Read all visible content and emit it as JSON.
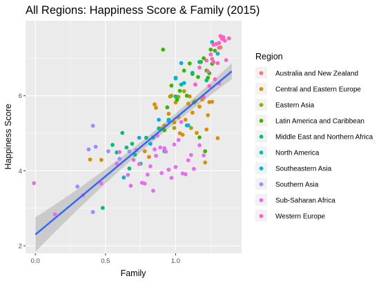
{
  "chart_data": {
    "type": "scatter",
    "title": "All Regions: Happiness Score & Family (2015)",
    "xlabel": "Family",
    "ylabel": "Happiness Score",
    "xlim": [
      -0.07,
      1.47
    ],
    "ylim": [
      1.8,
      8.0
    ],
    "xticks": [
      {
        "value": 0.0,
        "label": "0.0"
      },
      {
        "value": 0.5,
        "label": "0.5"
      },
      {
        "value": 1.0,
        "label": "1.0"
      }
    ],
    "yticks": [
      {
        "value": 2,
        "label": "2"
      },
      {
        "value": 4,
        "label": "4"
      },
      {
        "value": 6,
        "label": "6"
      }
    ],
    "grid": true,
    "legend_position": "right",
    "legend_title": "Region",
    "trend_line": {
      "method": "linear",
      "x": [
        0.0,
        1.4
      ],
      "y": [
        2.3,
        6.65
      ],
      "ci_band": true,
      "color": "#3366ff"
    },
    "series": [
      {
        "name": "Australia and New Zealand",
        "color": "#F8766D",
        "points": [
          [
            1.32,
            7.29
          ],
          [
            1.31,
            7.28
          ]
        ]
      },
      {
        "name": "Central and Eastern Europe",
        "color": "#D89000",
        "points": [
          [
            0.85,
            5.77
          ],
          [
            0.86,
            5.68
          ],
          [
            0.9,
            5.12
          ],
          [
            0.92,
            5.2
          ],
          [
            0.95,
            5.52
          ],
          [
            0.97,
            6.0
          ],
          [
            0.99,
            5.29
          ],
          [
            1.0,
            5.82
          ],
          [
            1.02,
            5.43
          ],
          [
            1.03,
            5.0
          ],
          [
            1.05,
            4.96
          ],
          [
            1.07,
            5.36
          ],
          [
            1.09,
            5.79
          ],
          [
            1.1,
            5.98
          ],
          [
            1.12,
            5.55
          ],
          [
            1.14,
            5.86
          ],
          [
            1.17,
            5.71
          ],
          [
            1.19,
            5.9
          ],
          [
            1.21,
            4.22
          ],
          [
            1.22,
            5.1
          ],
          [
            1.24,
            5.83
          ],
          [
            1.26,
            5.84
          ],
          [
            1.3,
            4.87
          ],
          [
            0.78,
            4.52
          ],
          [
            0.81,
            4.37
          ],
          [
            0.39,
            4.3
          ],
          [
            0.47,
            4.29
          ],
          [
            1.15,
            5.01
          ],
          [
            1.23,
            5.48
          ]
        ]
      },
      {
        "name": "Eastern Asia",
        "color": "#A3A500",
        "points": [
          [
            1.06,
            6.12
          ],
          [
            1.02,
            5.97
          ],
          [
            1.11,
            5.14
          ],
          [
            0.96,
            5.98
          ],
          [
            0.99,
            5.14
          ],
          [
            1.14,
            5.85
          ]
        ]
      },
      {
        "name": "Latin America and Caribbean",
        "color": "#39B600",
        "points": [
          [
            0.91,
            7.23
          ],
          [
            0.97,
            6.27
          ],
          [
            1.0,
            6.48
          ],
          [
            1.03,
            6.13
          ],
          [
            1.06,
            6.67
          ],
          [
            1.08,
            6.0
          ],
          [
            1.1,
            6.86
          ],
          [
            1.12,
            6.58
          ],
          [
            1.14,
            6.3
          ],
          [
            1.16,
            6.5
          ],
          [
            1.18,
            6.9
          ],
          [
            1.2,
            7.0
          ],
          [
            1.22,
            6.67
          ],
          [
            1.24,
            6.6
          ],
          [
            1.26,
            6.85
          ],
          [
            1.28,
            7.2
          ],
          [
            1.21,
            4.52
          ],
          [
            1.17,
            4.89
          ],
          [
            0.94,
            5.69
          ],
          [
            1.01,
            5.89
          ],
          [
            1.13,
            5.82
          ],
          [
            0.92,
            5.08
          ],
          [
            1.25,
            7.23
          ],
          [
            1.23,
            6.48
          ]
        ]
      },
      {
        "name": "Middle East and Northern Africa",
        "color": "#00BF7D",
        "points": [
          [
            0.48,
            3.01
          ],
          [
            0.55,
            4.69
          ],
          [
            0.62,
            5.01
          ],
          [
            0.65,
            4.62
          ],
          [
            0.69,
            4.72
          ],
          [
            0.71,
            4.43
          ],
          [
            0.75,
            4.19
          ],
          [
            0.79,
            4.88
          ],
          [
            0.84,
            4.89
          ],
          [
            0.88,
            5.13
          ],
          [
            0.92,
            4.52
          ],
          [
            0.95,
            5.36
          ],
          [
            1.0,
            5.98
          ],
          [
            1.04,
            6.3
          ],
          [
            1.08,
            5.21
          ],
          [
            1.12,
            6.61
          ],
          [
            1.17,
            6.9
          ],
          [
            1.22,
            6.41
          ],
          [
            0.58,
            4.49
          ],
          [
            0.67,
            4.06
          ]
        ]
      },
      {
        "name": "North America",
        "color": "#00C0B8",
        "points": [
          [
            1.3,
            7.12
          ],
          [
            1.26,
            7.43
          ]
        ]
      },
      {
        "name": "Southeastern Asia",
        "color": "#00B0F6",
        "points": [
          [
            0.63,
            3.82
          ],
          [
            0.74,
            4.88
          ],
          [
            0.82,
            4.72
          ],
          [
            0.88,
            5.36
          ],
          [
            0.95,
            5.33
          ],
          [
            1.0,
            6.46
          ],
          [
            1.09,
            5.21
          ],
          [
            1.04,
            6.87
          ],
          [
            1.06,
            6.34
          ]
        ]
      },
      {
        "name": "Southern Asia",
        "color": "#9590FF",
        "points": [
          [
            0.3,
            3.58
          ],
          [
            0.41,
            5.2
          ],
          [
            0.38,
            4.57
          ],
          [
            0.43,
            4.64
          ],
          [
            0.52,
            4.52
          ],
          [
            0.6,
            4.32
          ],
          [
            0.67,
            4.51
          ],
          [
            0.41,
            2.9
          ]
        ]
      },
      {
        "name": "Sub-Saharan Africa",
        "color": "#E76BF3",
        "points": [
          [
            -0.01,
            3.67
          ],
          [
            0.14,
            2.84
          ],
          [
            0.34,
            3.35
          ],
          [
            0.47,
            3.66
          ],
          [
            0.58,
            4.19
          ],
          [
            0.6,
            4.5
          ],
          [
            0.66,
            3.89
          ],
          [
            0.68,
            3.6
          ],
          [
            0.7,
            4.29
          ],
          [
            0.72,
            4.55
          ],
          [
            0.74,
            4.18
          ],
          [
            0.76,
            3.68
          ],
          [
            0.78,
            3.66
          ],
          [
            0.8,
            3.9
          ],
          [
            0.82,
            4.12
          ],
          [
            0.84,
            3.47
          ],
          [
            0.85,
            4.57
          ],
          [
            0.87,
            4.94
          ],
          [
            0.89,
            4.62
          ],
          [
            0.9,
            3.94
          ],
          [
            0.93,
            4.51
          ],
          [
            0.95,
            4.03
          ],
          [
            0.97,
            3.81
          ],
          [
            0.99,
            4.7
          ],
          [
            1.0,
            4.1
          ],
          [
            1.02,
            4.82
          ],
          [
            1.05,
            3.93
          ],
          [
            1.07,
            3.91
          ],
          [
            1.09,
            4.28
          ],
          [
            1.11,
            4.42
          ],
          [
            1.13,
            4.05
          ],
          [
            1.17,
            4.68
          ],
          [
            1.2,
            4.41
          ],
          [
            0.86,
            4.4
          ],
          [
            0.92,
            4.6
          ],
          [
            1.04,
            5.3
          ]
        ]
      },
      {
        "name": "Western Europe",
        "color": "#FF61C3",
        "points": [
          [
            1.14,
            6.3
          ],
          [
            1.17,
            6.75
          ],
          [
            1.2,
            5.96
          ],
          [
            1.22,
            6.94
          ],
          [
            1.24,
            6.26
          ],
          [
            1.26,
            6.98
          ],
          [
            1.27,
            7.36
          ],
          [
            1.28,
            6.44
          ],
          [
            1.29,
            7.38
          ],
          [
            1.3,
            6.87
          ],
          [
            1.31,
            7.41
          ],
          [
            1.33,
            7.52
          ],
          [
            1.34,
            7.56
          ],
          [
            1.35,
            7.47
          ],
          [
            1.36,
            6.95
          ],
          [
            1.38,
            7.53
          ],
          [
            1.23,
            6.65
          ],
          [
            1.27,
            6.9
          ],
          [
            1.31,
            6.33
          ],
          [
            1.25,
            7.1
          ],
          [
            1.32,
            7.59
          ]
        ]
      }
    ]
  }
}
